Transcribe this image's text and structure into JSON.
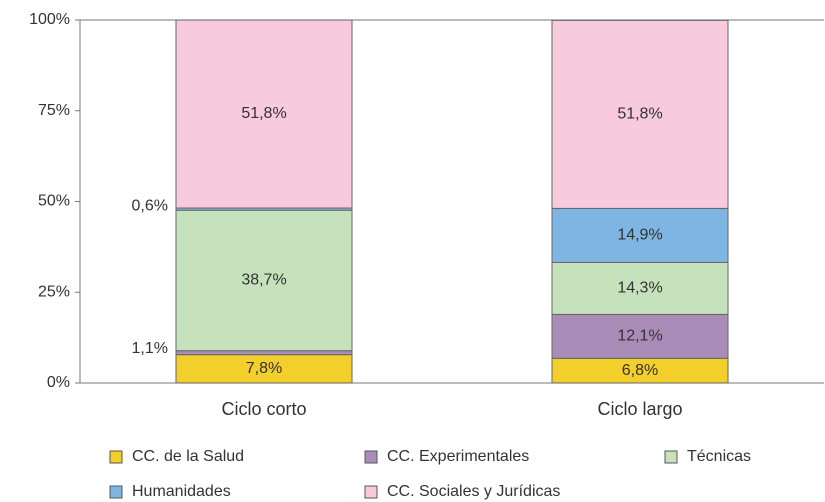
{
  "chart_data": {
    "type": "stacked_bar",
    "categories": [
      "Ciclo corto",
      "Ciclo largo"
    ],
    "series": [
      {
        "name": "CC. de la Salud",
        "color": "#f3cf2b",
        "values": [
          7.8,
          6.8
        ],
        "value_labels": [
          "7,8%",
          "6,8%"
        ]
      },
      {
        "name": "CC. Experimentales",
        "color": "#a98db8",
        "values": [
          1.1,
          12.1
        ],
        "value_labels": [
          "1,1%",
          "12,1%"
        ]
      },
      {
        "name": "Técnicas",
        "color": "#c6e2bd",
        "values": [
          38.7,
          14.3
        ],
        "value_labels": [
          "38,7%",
          "14,3%"
        ]
      },
      {
        "name": "Humanidades",
        "color": "#7fb5e2",
        "values": [
          0.6,
          14.9
        ],
        "value_labels": [
          "0,6%",
          "14,9%"
        ]
      },
      {
        "name": "CC. Sociales y Jurídicas",
        "color": "#f7cadd",
        "values": [
          51.8,
          51.8
        ],
        "value_labels": [
          "51,8%",
          "51,8%"
        ]
      }
    ],
    "ylim": [
      0,
      100
    ],
    "yticks": [
      {
        "value": 0,
        "label": "0%"
      },
      {
        "value": 25,
        "label": "25%"
      },
      {
        "value": 50,
        "label": "50%"
      },
      {
        "value": 75,
        "label": "75%"
      },
      {
        "value": 100,
        "label": "100%"
      }
    ]
  }
}
